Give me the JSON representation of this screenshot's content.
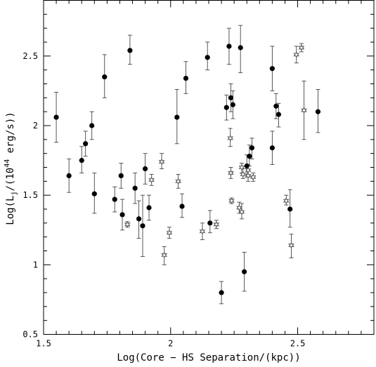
{
  "chart_data": {
    "type": "scatter",
    "title": "",
    "xlabel": "Log(Core − HS Separation/(kpc))",
    "ylabel_parts": {
      "pre": "Log(L",
      "sub": "j",
      "mid": "/(10",
      "sup": "44",
      "post": " erg/s))"
    },
    "xlim": [
      1.5,
      2.8
    ],
    "ylim": [
      0.5,
      2.9
    ],
    "x_ticks": [
      1.5,
      2,
      2.5
    ],
    "x_tick_labels": [
      "1.5",
      "2",
      "2.5"
    ],
    "y_ticks": [
      0.5,
      1,
      1.5,
      2,
      2.5
    ],
    "y_tick_labels": [
      "0.5",
      "1",
      "1.5",
      "2",
      "2.5"
    ],
    "grid": false,
    "series": [
      {
        "marker": "filled-circle",
        "points": [
          {
            "x": 1.55,
            "y": 2.06,
            "lo": 1.88,
            "hi": 2.24
          },
          {
            "x": 1.6,
            "y": 1.64,
            "lo": 1.52,
            "hi": 1.76
          },
          {
            "x": 1.65,
            "y": 1.75,
            "lo": 1.66,
            "hi": 1.85
          },
          {
            "x": 1.665,
            "y": 1.87,
            "lo": 1.78,
            "hi": 1.96
          },
          {
            "x": 1.69,
            "y": 2.0,
            "lo": 1.9,
            "hi": 2.1
          },
          {
            "x": 1.7,
            "y": 1.51,
            "lo": 1.37,
            "hi": 1.66
          },
          {
            "x": 1.74,
            "y": 2.35,
            "lo": 2.2,
            "hi": 2.51
          },
          {
            "x": 1.78,
            "y": 1.47,
            "lo": 1.38,
            "hi": 1.56
          },
          {
            "x": 1.805,
            "y": 1.64,
            "lo": 1.55,
            "hi": 1.73
          },
          {
            "x": 1.81,
            "y": 1.36,
            "lo": 1.25,
            "hi": 1.47
          },
          {
            "x": 1.84,
            "y": 2.54,
            "lo": 2.44,
            "hi": 2.65
          },
          {
            "x": 1.86,
            "y": 1.55,
            "lo": 1.44,
            "hi": 1.66
          },
          {
            "x": 1.875,
            "y": 1.33,
            "lo": 1.19,
            "hi": 1.46
          },
          {
            "x": 1.89,
            "y": 1.28,
            "lo": 1.06,
            "hi": 1.5
          },
          {
            "x": 1.9,
            "y": 1.69,
            "lo": 1.58,
            "hi": 1.8
          },
          {
            "x": 1.915,
            "y": 1.41,
            "lo": 1.32,
            "hi": 1.5
          },
          {
            "x": 2.025,
            "y": 2.06,
            "lo": 1.87,
            "hi": 2.26
          },
          {
            "x": 2.045,
            "y": 1.42,
            "lo": 1.34,
            "hi": 1.51
          },
          {
            "x": 2.06,
            "y": 2.34,
            "lo": 2.23,
            "hi": 2.46
          },
          {
            "x": 2.145,
            "y": 2.49,
            "lo": 2.4,
            "hi": 2.6
          },
          {
            "x": 2.155,
            "y": 1.3,
            "lo": 1.23,
            "hi": 1.39
          },
          {
            "x": 2.2,
            "y": 0.8,
            "lo": 0.72,
            "hi": 0.88
          },
          {
            "x": 2.22,
            "y": 2.13,
            "lo": 2.04,
            "hi": 2.22
          },
          {
            "x": 2.23,
            "y": 2.57,
            "lo": 2.44,
            "hi": 2.7
          },
          {
            "x": 2.237,
            "y": 2.2,
            "lo": 2.1,
            "hi": 2.3
          },
          {
            "x": 2.245,
            "y": 2.15,
            "lo": 2.05,
            "hi": 2.25
          },
          {
            "x": 2.275,
            "y": 2.56,
            "lo": 2.38,
            "hi": 2.72
          },
          {
            "x": 2.29,
            "y": 0.95,
            "lo": 0.81,
            "hi": 1.09
          },
          {
            "x": 2.3,
            "y": 1.71,
            "lo": 1.63,
            "hi": 1.79
          },
          {
            "x": 2.31,
            "y": 1.78,
            "lo": 1.71,
            "hi": 1.86
          },
          {
            "x": 2.32,
            "y": 1.84,
            "lo": 1.76,
            "hi": 1.91
          },
          {
            "x": 2.4,
            "y": 2.41,
            "lo": 2.25,
            "hi": 2.57
          },
          {
            "x": 2.4,
            "y": 1.84,
            "lo": 1.72,
            "hi": 1.96
          },
          {
            "x": 2.415,
            "y": 2.14,
            "lo": 2.05,
            "hi": 2.23
          },
          {
            "x": 2.425,
            "y": 2.08,
            "lo": 1.99,
            "hi": 2.16
          },
          {
            "x": 2.47,
            "y": 1.4,
            "lo": 1.27,
            "hi": 1.54
          },
          {
            "x": 2.58,
            "y": 2.1,
            "lo": 1.95,
            "hi": 2.26
          }
        ]
      },
      {
        "marker": "open-star",
        "points": [
          {
            "x": 1.83,
            "y": 1.29,
            "lo": 1.27,
            "hi": 1.31
          },
          {
            "x": 1.925,
            "y": 1.61,
            "lo": 1.57,
            "hi": 1.65
          },
          {
            "x": 1.965,
            "y": 1.74,
            "lo": 1.69,
            "hi": 1.8
          },
          {
            "x": 1.975,
            "y": 1.07,
            "lo": 1.0,
            "hi": 1.13
          },
          {
            "x": 1.995,
            "y": 1.23,
            "lo": 1.19,
            "hi": 1.27
          },
          {
            "x": 2.03,
            "y": 1.6,
            "lo": 1.55,
            "hi": 1.65
          },
          {
            "x": 2.125,
            "y": 1.24,
            "lo": 1.18,
            "hi": 1.3
          },
          {
            "x": 2.18,
            "y": 1.29,
            "lo": 1.26,
            "hi": 1.32
          },
          {
            "x": 2.235,
            "y": 1.91,
            "lo": 1.85,
            "hi": 1.98
          },
          {
            "x": 2.237,
            "y": 1.66,
            "lo": 1.62,
            "hi": 1.7
          },
          {
            "x": 2.24,
            "y": 1.46,
            "lo": 1.44,
            "hi": 1.48
          },
          {
            "x": 2.27,
            "y": 1.41,
            "lo": 1.37,
            "hi": 1.45
          },
          {
            "x": 2.28,
            "y": 1.38,
            "lo": 1.33,
            "hi": 1.44
          },
          {
            "x": 2.28,
            "y": 1.7,
            "lo": 1.66,
            "hi": 1.73
          },
          {
            "x": 2.285,
            "y": 1.65,
            "lo": 1.62,
            "hi": 1.69
          },
          {
            "x": 2.305,
            "y": 1.68,
            "lo": 1.64,
            "hi": 1.72
          },
          {
            "x": 2.305,
            "y": 1.64,
            "lo": 1.6,
            "hi": 1.68
          },
          {
            "x": 2.325,
            "y": 1.63,
            "lo": 1.6,
            "hi": 1.66
          },
          {
            "x": 2.455,
            "y": 1.46,
            "lo": 1.43,
            "hi": 1.5
          },
          {
            "x": 2.475,
            "y": 1.14,
            "lo": 1.05,
            "hi": 1.22
          },
          {
            "x": 2.495,
            "y": 2.51,
            "lo": 2.45,
            "hi": 2.57
          },
          {
            "x": 2.515,
            "y": 2.56,
            "lo": 2.53,
            "hi": 2.59
          },
          {
            "x": 2.525,
            "y": 2.11,
            "lo": 1.9,
            "hi": 2.32
          }
        ]
      }
    ]
  }
}
